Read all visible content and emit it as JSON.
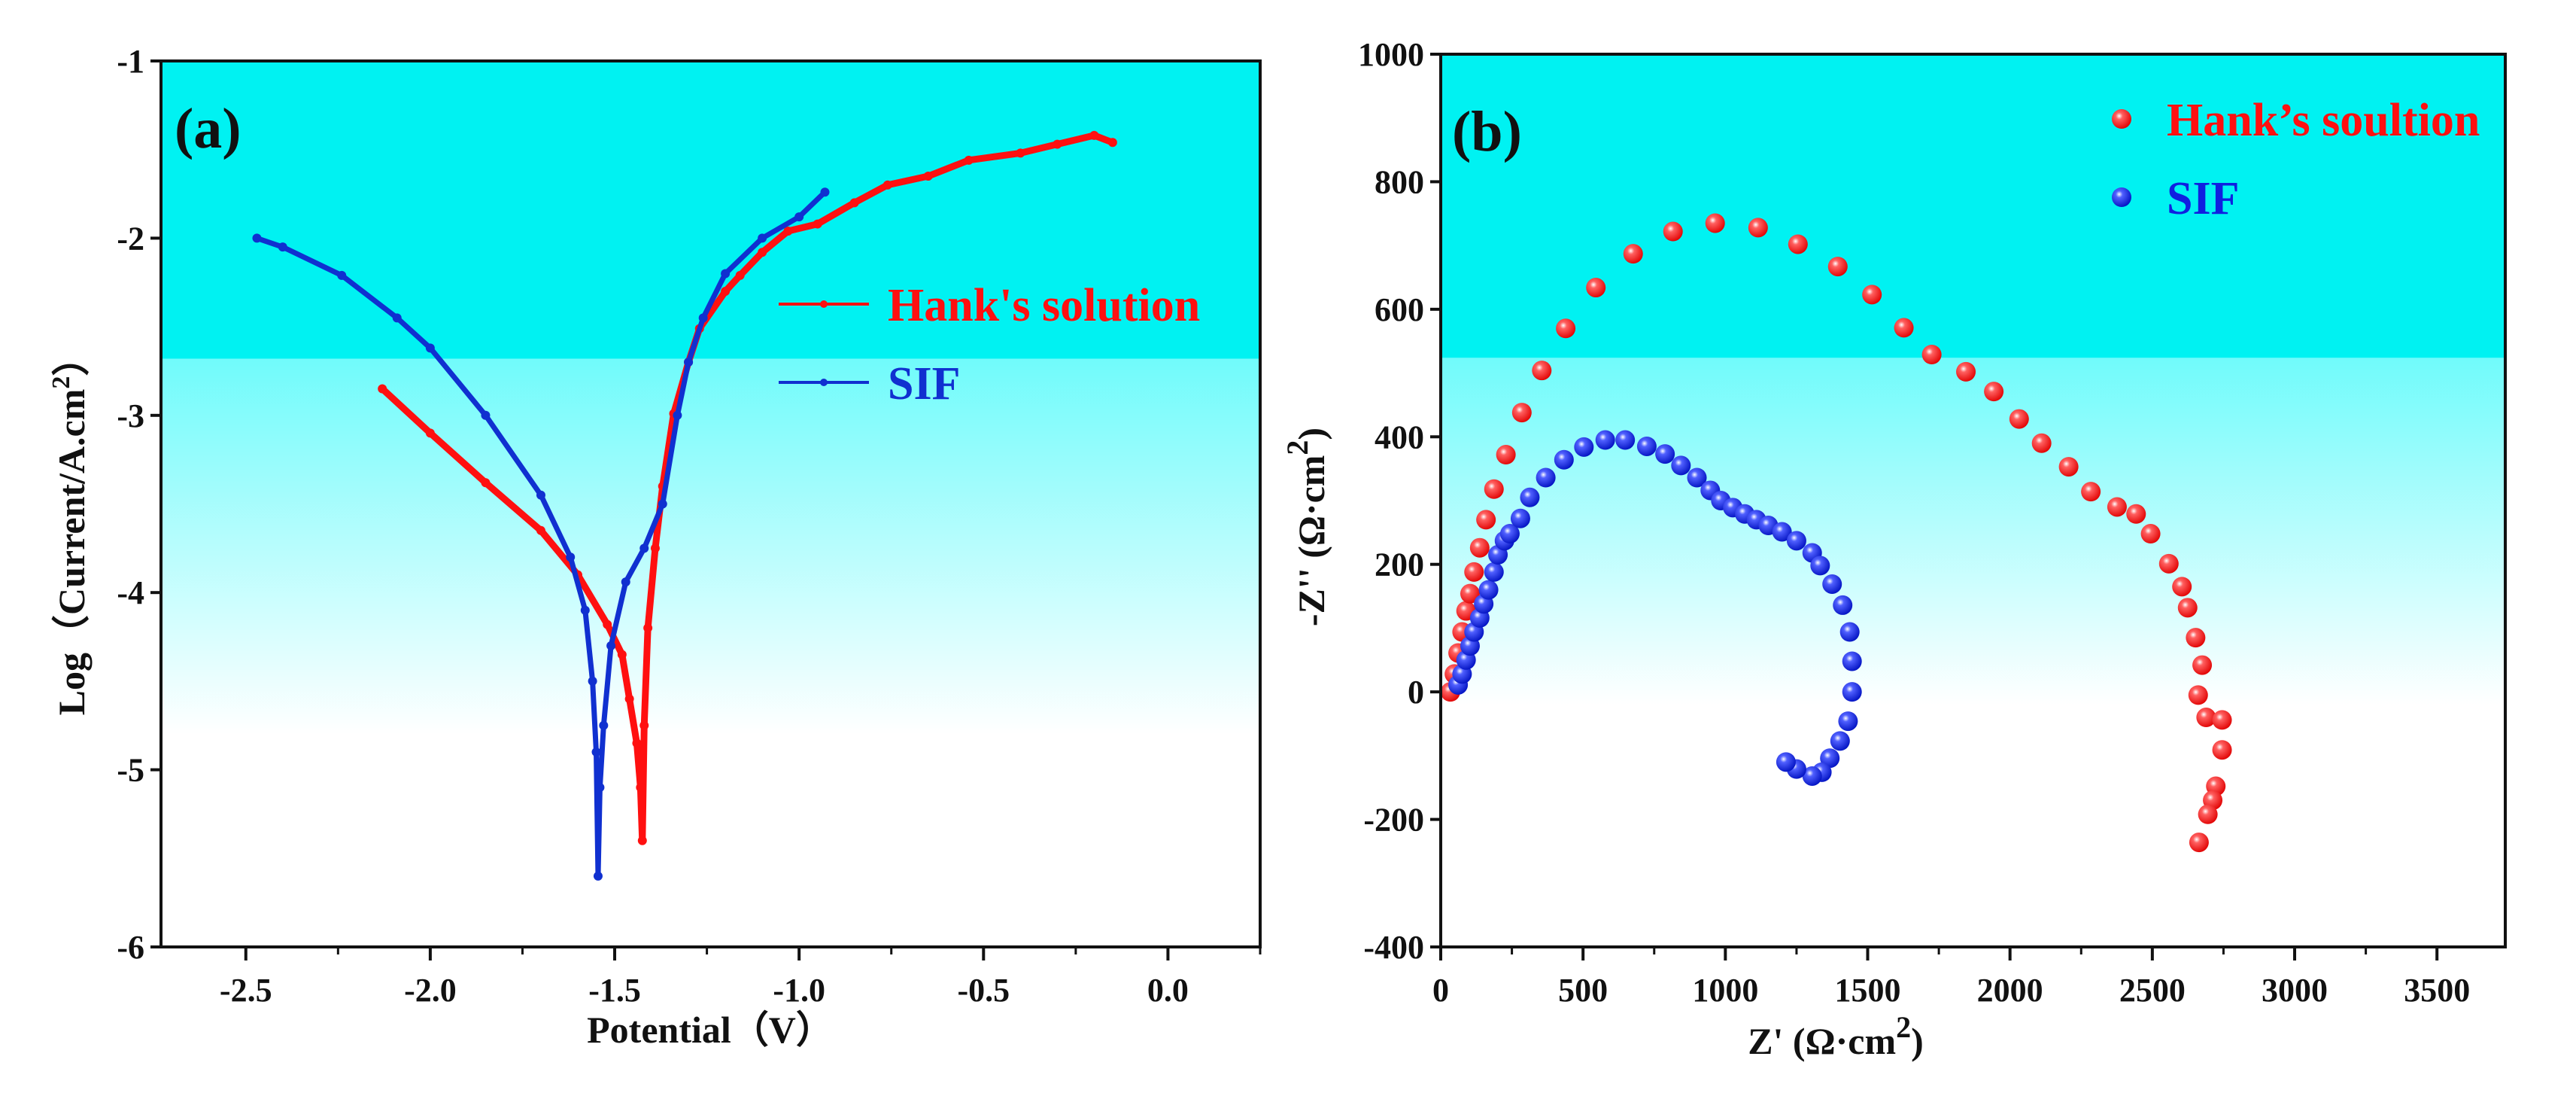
{
  "chart_data": [
    {
      "type": "line",
      "panel_label": "(a)",
      "xlabel": "Potential（V）",
      "ylabel_main": "Log（Current/A.cm",
      "ylabel_sup": "2",
      "ylabel_end": "）",
      "xlim": [
        -2.73,
        0.25
      ],
      "ylim": [
        -6,
        -1
      ],
      "xticks": [
        -2.5,
        -2.0,
        -1.5,
        -1.0,
        -0.5,
        0.0
      ],
      "xtick_labels": [
        "-2.5",
        "-2.0",
        "-1.5",
        "-1.0",
        "-0.5",
        "0.0"
      ],
      "yticks": [
        -1,
        -2,
        -3,
        -4,
        -5,
        -6
      ],
      "ytick_labels": [
        "-1",
        "-2",
        "-3",
        "-4",
        "-5",
        "-6"
      ],
      "background": {
        "cyan_until": -2.68,
        "white_from": -4.8
      },
      "legend": {
        "placement": "upper-right"
      },
      "series": [
        {
          "name": "Hank's solution",
          "color": "#ff1010",
          "x": [
            -2.13,
            -2.0,
            -1.85,
            -1.7,
            -1.6,
            -1.52,
            -1.48,
            -1.46,
            -1.44,
            -1.43,
            -1.425,
            -1.42,
            -1.41,
            -1.39,
            -1.37,
            -1.34,
            -1.3,
            -1.27,
            -1.2,
            -1.16,
            -1.1,
            -1.03,
            -0.95,
            -0.85,
            -0.76,
            -0.65,
            -0.54,
            -0.4,
            -0.3,
            -0.2,
            -0.15
          ],
          "y": [
            -2.85,
            -3.1,
            -3.38,
            -3.65,
            -3.9,
            -4.18,
            -4.35,
            -4.6,
            -4.85,
            -5.1,
            -5.4,
            -4.75,
            -4.2,
            -3.75,
            -3.4,
            -2.99,
            -2.7,
            -2.51,
            -2.3,
            -2.21,
            -2.08,
            -1.96,
            -1.92,
            -1.8,
            -1.7,
            -1.65,
            -1.56,
            -1.52,
            -1.47,
            -1.42,
            -1.46
          ]
        },
        {
          "name": "SIF",
          "color": "#1030d0",
          "x": [
            -2.47,
            -2.4,
            -2.24,
            -2.09,
            -2.0,
            -1.85,
            -1.7,
            -1.62,
            -1.58,
            -1.56,
            -1.55,
            -1.545,
            -1.54,
            -1.53,
            -1.51,
            -1.47,
            -1.42,
            -1.37,
            -1.33,
            -1.3,
            -1.26,
            -1.2,
            -1.1,
            -1.0,
            -0.93
          ],
          "y": [
            -2.0,
            -2.05,
            -2.21,
            -2.45,
            -2.62,
            -3.0,
            -3.45,
            -3.8,
            -4.1,
            -4.5,
            -4.9,
            -5.6,
            -5.1,
            -4.75,
            -4.3,
            -3.94,
            -3.75,
            -3.5,
            -3.0,
            -2.7,
            -2.45,
            -2.2,
            -2.0,
            -1.88,
            -1.74
          ]
        }
      ]
    },
    {
      "type": "scatter",
      "panel_label": "(b)",
      "xlabel_main": "Z' (Ω·cm",
      "xlabel_sup": "2",
      "xlabel_end": ")",
      "ylabel_main": "-Z'' (Ω·cm",
      "ylabel_sup": "2",
      "ylabel_end": ")",
      "xlim": [
        0,
        3740
      ],
      "ylim": [
        -400,
        1000
      ],
      "xticks": [
        0,
        500,
        1000,
        1500,
        2000,
        2500,
        3000,
        3500
      ],
      "xtick_labels": [
        "0",
        "500",
        "1000",
        "1500",
        "2000",
        "2500",
        "3000",
        "3500"
      ],
      "yticks": [
        1000,
        800,
        600,
        400,
        200,
        0,
        -200,
        -400
      ],
      "ytick_labels": [
        "1000",
        "800",
        "600",
        "400",
        "200",
        "0",
        "-200",
        "-400"
      ],
      "background": {
        "cyan_until": 524,
        "white_from": -20
      },
      "legend": {
        "placement": "upper-right"
      },
      "series": [
        {
          "name": "Hank’s soultion",
          "color": "#ff1010",
          "x": [
            34,
            48,
            61,
            75,
            89,
            103,
            117,
            137,
            159,
            187,
            229,
            285,
            355,
            439,
            545,
            676,
            816,
            964,
            1115,
            1255,
            1395,
            1515,
            1627,
            1725,
            1845,
            1943,
            2032,
            2111,
            2206,
            2284,
            2376,
            2443,
            2494,
            2558,
            2604,
            2624,
            2652,
            2675,
            2661,
            2689,
            2745,
            2745,
            2723,
            2712,
            2695,
            2664
          ],
          "y": [
            0,
            28,
            61,
            94,
            127,
            154,
            188,
            226,
            270,
            318,
            372,
            438,
            504,
            570,
            634,
            687,
            722,
            735,
            728,
            702,
            667,
            623,
            571,
            529,
            502,
            471,
            428,
            390,
            353,
            314,
            290,
            279,
            248,
            201,
            165,
            132,
            85,
            42,
            -5,
            -40,
            -44,
            -91,
            -148,
            -170,
            -192,
            -236
          ]
        },
        {
          "name": "SIF",
          "color": "#1020e0",
          "x": [
            61,
            75,
            89,
            103,
            117,
            137,
            151,
            168,
            187,
            201,
            224,
            243,
            280,
            313,
            369,
            433,
            503,
            578,
            648,
            724,
            788,
            844,
            900,
            947,
            984,
            1026,
            1068,
            1109,
            1151,
            1199,
            1250,
            1305,
            1333,
            1375,
            1412,
            1437,
            1445,
            1445,
            1431,
            1403,
            1367,
            1339,
            1305,
            1250,
            1213
          ],
          "y": [
            11,
            28,
            50,
            72,
            94,
            116,
            138,
            160,
            188,
            215,
            237,
            248,
            272,
            305,
            336,
            364,
            384,
            395,
            395,
            385,
            373,
            355,
            336,
            316,
            300,
            289,
            279,
            270,
            261,
            251,
            237,
            218,
            198,
            169,
            136,
            94,
            48,
            0,
            -46,
            -77,
            -104,
            -126,
            -132,
            -121,
            -110
          ]
        }
      ]
    }
  ]
}
